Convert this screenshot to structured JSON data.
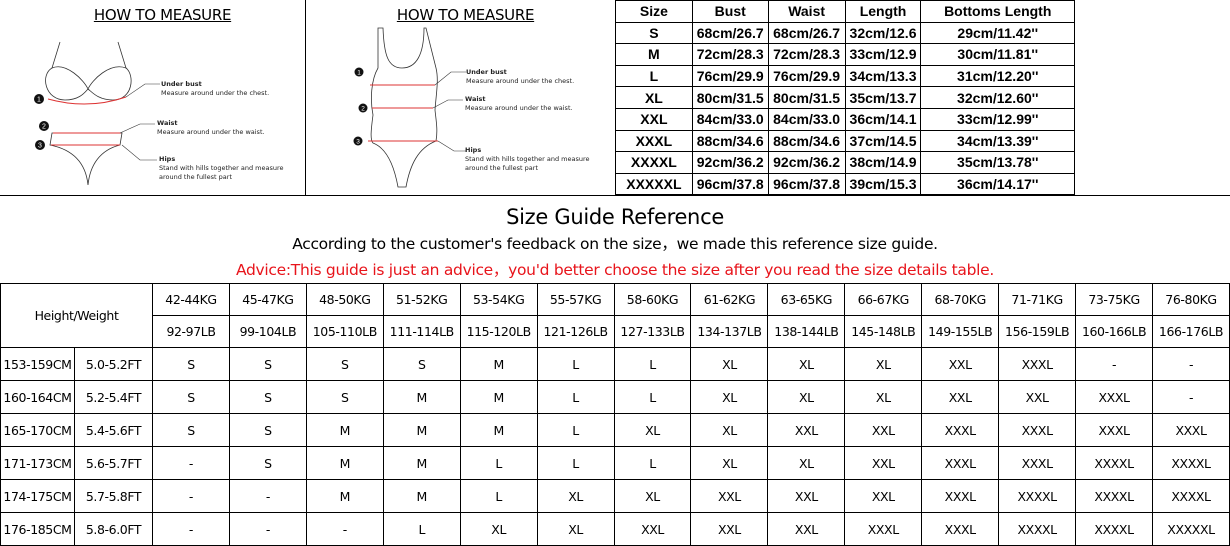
{
  "measure_bikini": {
    "title": "HOW TO MEASURE",
    "under_bust": {
      "label": "Under bust",
      "desc": "Measure around under the chest."
    },
    "waist": {
      "label": "Waist",
      "desc": "Measure around under the waist."
    },
    "hips": {
      "label": "Hips",
      "desc1": "Stand with hills together and measure",
      "desc2": "around  the fullest part"
    },
    "markers": [
      "1",
      "2",
      "3"
    ]
  },
  "measure_onepiece": {
    "title": "HOW TO MEASURE",
    "under_bust": {
      "label": "Under bust",
      "desc": "Measure around under the chest."
    },
    "waist": {
      "label": "Waist",
      "desc": "Measure around under the waist."
    },
    "hips": {
      "label": "Hips",
      "desc1": "Stand with hills together and measure",
      "desc2": "around  the fullest part"
    },
    "markers": [
      "1",
      "2",
      "3"
    ]
  },
  "size_table": {
    "headers": [
      "Size",
      "Bust",
      "Waist",
      "Length",
      "Bottoms Length"
    ],
    "rows": [
      [
        "S",
        "68cm/26.7",
        "68cm/26.7",
        "32cm/12.6",
        "29cm/11.42''"
      ],
      [
        "M",
        "72cm/28.3",
        "72cm/28.3",
        "33cm/12.9",
        "30cm/11.81''"
      ],
      [
        "L",
        "76cm/29.9",
        "76cm/29.9",
        "34cm/13.3",
        "31cm/12.20''"
      ],
      [
        "XL",
        "80cm/31.5",
        "80cm/31.5",
        "35cm/13.7",
        "32cm/12.60''"
      ],
      [
        "XXL",
        "84cm/33.0",
        "84cm/33.0",
        "36cm/14.1",
        "33cm/12.99''"
      ],
      [
        "XXXL",
        "88cm/34.6",
        "88cm/34.6",
        "37cm/14.5",
        "34cm/13.39''"
      ],
      [
        "XXXXL",
        "92cm/36.2",
        "92cm/36.2",
        "38cm/14.9",
        "35cm/13.78''"
      ],
      [
        "XXXXXL",
        "96cm/37.8",
        "96cm/37.8",
        "39cm/15.3",
        "36cm/14.17''"
      ]
    ]
  },
  "guide": {
    "title": "Size Guide Reference",
    "subtitle": "According to the customer's feedback on the size，we made this reference size guide.",
    "advice": "Advice:This guide is just an advice，you'd better choose the size after you read the size details table.",
    "advice_color": "#e8141b"
  },
  "hw_table": {
    "corner": "Height/Weight",
    "kg": [
      "42-44KG",
      "45-47KG",
      "48-50KG",
      "51-52KG",
      "53-54KG",
      "55-57KG",
      "58-60KG",
      "61-62KG",
      "63-65KG",
      "66-67KG",
      "68-70KG",
      "71-71KG",
      "73-75KG",
      "76-80KG"
    ],
    "lb": [
      "92-97LB",
      "99-104LB",
      "105-110LB",
      "111-114LB",
      "115-120LB",
      "121-126LB",
      "127-133LB",
      "134-137LB",
      "138-144LB",
      "145-148LB",
      "149-155LB",
      "156-159LB",
      "160-166LB",
      "166-176LB"
    ],
    "rows": [
      {
        "cm": "153-159CM",
        "ft": "5.0-5.2FT",
        "sizes": [
          "S",
          "S",
          "S",
          "S",
          "M",
          "L",
          "L",
          "XL",
          "XL",
          "XL",
          "XXL",
          "XXXL",
          "-",
          "-"
        ]
      },
      {
        "cm": "160-164CM",
        "ft": "5.2-5.4FT",
        "sizes": [
          "S",
          "S",
          "S",
          "M",
          "M",
          "L",
          "L",
          "XL",
          "XL",
          "XL",
          "XXL",
          "XXL",
          "XXXL",
          "-"
        ]
      },
      {
        "cm": "165-170CM",
        "ft": "5.4-5.6FT",
        "sizes": [
          "S",
          "S",
          "M",
          "M",
          "M",
          "L",
          "XL",
          "XL",
          "XXL",
          "XXL",
          "XXXL",
          "XXXL",
          "XXXL",
          "XXXL"
        ]
      },
      {
        "cm": "171-173CM",
        "ft": "5.6-5.7FT",
        "sizes": [
          "-",
          "S",
          "M",
          "M",
          "L",
          "L",
          "L",
          "XL",
          "XL",
          "XXL",
          "XXXL",
          "XXXL",
          "XXXXL",
          "XXXXL"
        ]
      },
      {
        "cm": "174-175CM",
        "ft": "5.7-5.8FT",
        "sizes": [
          "-",
          "-",
          "M",
          "M",
          "L",
          "XL",
          "XL",
          "XXL",
          "XXL",
          "XXL",
          "XXXL",
          "XXXXL",
          "XXXXL",
          "XXXXL"
        ]
      },
      {
        "cm": "176-185CM",
        "ft": "5.8-6.0FT",
        "sizes": [
          "-",
          "-",
          "-",
          "L",
          "XL",
          "XL",
          "XXL",
          "XXL",
          "XXL",
          "XXXL",
          "XXXL",
          "XXXXL",
          "XXXXL",
          "XXXXXL"
        ]
      }
    ]
  }
}
